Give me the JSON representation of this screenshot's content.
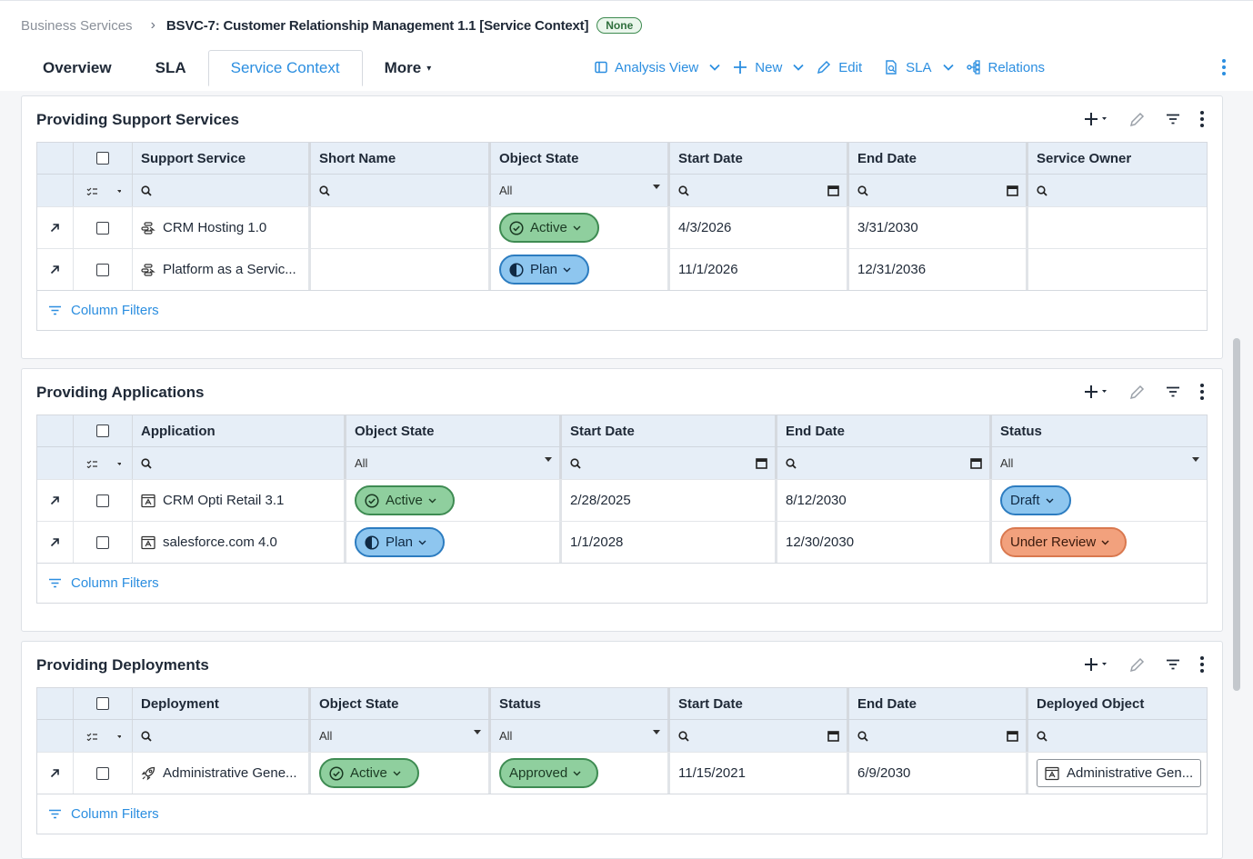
{
  "breadcrumb": {
    "parent": "Business Services",
    "current": "BSVC-7: Customer Relationship Management 1.1 [Service Context]",
    "badge": "None"
  },
  "tabs": [
    {
      "label": "Overview"
    },
    {
      "label": "SLA"
    },
    {
      "label": "Service Context",
      "active": true
    },
    {
      "label": "More"
    }
  ],
  "actions": {
    "analysis_view": "Analysis View",
    "new": "New",
    "edit": "Edit",
    "sla": "SLA",
    "relations": "Relations"
  },
  "common": {
    "filter_all": "All",
    "column_filters": "Column Filters"
  },
  "support_services": {
    "title": "Providing Support Services",
    "columns": [
      "Support Service",
      "Short Name",
      "Object State",
      "Start Date",
      "End Date",
      "Service Owner"
    ],
    "rows": [
      {
        "name": "CRM Hosting 1.0",
        "short_name": "",
        "state": "Active",
        "start": "4/3/2026",
        "end": "3/31/2030",
        "owner": ""
      },
      {
        "name": "Platform as a Servic...",
        "short_name": "",
        "state": "Plan",
        "start": "11/1/2026",
        "end": "12/31/2036",
        "owner": ""
      }
    ]
  },
  "applications": {
    "title": "Providing Applications",
    "columns": [
      "Application",
      "Object State",
      "Start Date",
      "End Date",
      "Status"
    ],
    "rows": [
      {
        "name": "CRM Opti Retail 3.1",
        "state": "Active",
        "start": "2/28/2025",
        "end": "8/12/2030",
        "status": "Draft"
      },
      {
        "name": "salesforce.com 4.0",
        "state": "Plan",
        "start": "1/1/2028",
        "end": "12/30/2030",
        "status": "Under Review"
      }
    ]
  },
  "deployments": {
    "title": "Providing Deployments",
    "columns": [
      "Deployment",
      "Object State",
      "Status",
      "Start Date",
      "End Date",
      "Deployed Object"
    ],
    "rows": [
      {
        "name": "Administrative Gene...",
        "state": "Active",
        "status": "Approved",
        "start": "11/15/2021",
        "end": "6/9/2030",
        "deployed_object": "Administrative Gen..."
      }
    ]
  },
  "colors": {
    "accent": "#2b8ee0",
    "active_fill": "#8fcf9e",
    "plan_fill": "#8ec6ef",
    "review_fill": "#f2a17d",
    "header_bg": "#e6eef7"
  },
  "icons": {
    "row_open": "arrow-up-right-icon",
    "support_service": "support-service-icon",
    "application": "application-icon",
    "deployment": "rocket-icon",
    "search": "search-icon",
    "calendar": "calendar-icon",
    "filter": "filter-icon"
  }
}
